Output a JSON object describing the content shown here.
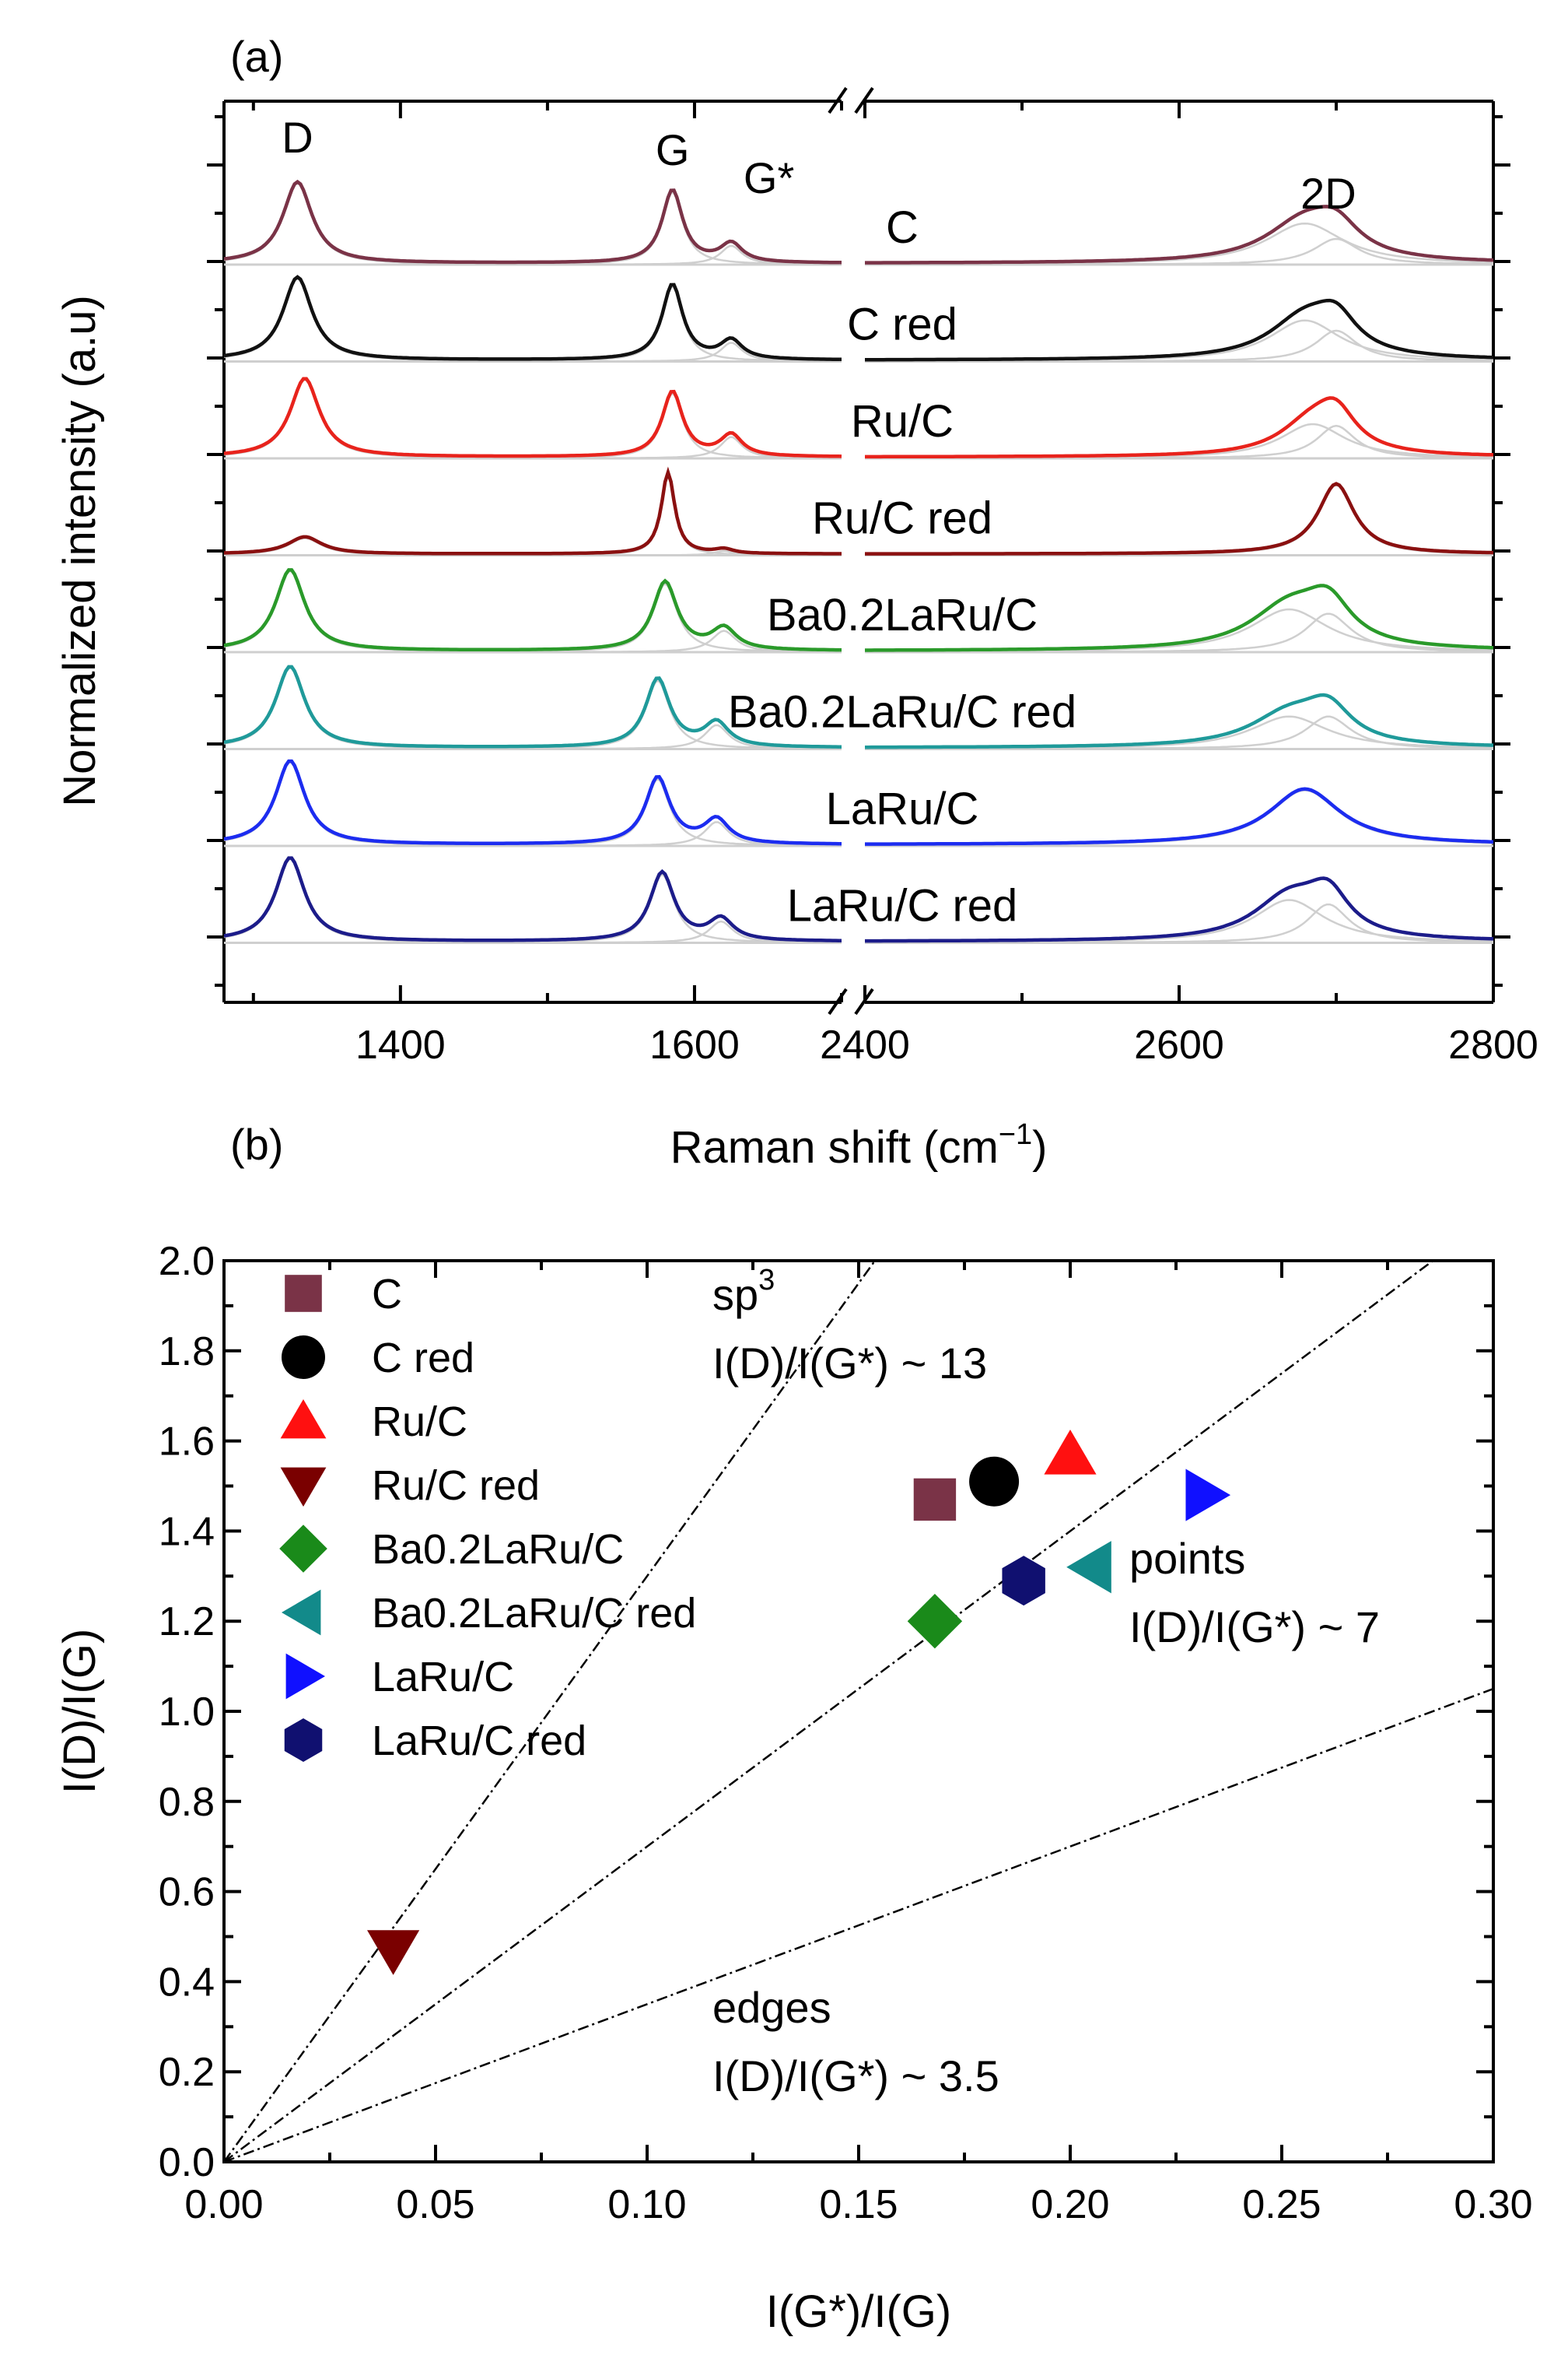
{
  "chart_data": [
    {
      "panel": "(a)",
      "type": "line",
      "xlabel": "Raman shift (cm",
      "xlabel_sup": "−1",
      "xlabel_tail": ")",
      "ylabel": "Normalized intensity (a.u)",
      "x_break": [
        1700,
        2400
      ],
      "x_segments": [
        [
          1280,
          1700
        ],
        [
          2400,
          2800
        ]
      ],
      "xticks": [
        1400,
        1600,
        2400,
        2600,
        2800
      ],
      "band_labels": [
        {
          "text": "D",
          "x": 1330
        },
        {
          "text": "G",
          "x": 1585
        },
        {
          "text": "G*",
          "x": 1640
        },
        {
          "text": "2D",
          "x": 2695
        }
      ],
      "series": [
        {
          "name": "C",
          "color": "#7a3347",
          "D": {
            "x": 1330,
            "h": 0.95,
            "w": 24
          },
          "G": {
            "x": 1585,
            "h": 0.85,
            "w": 17
          },
          "Gs": {
            "x": 1625,
            "h": 0.22,
            "w": 18
          },
          "d2": [
            {
              "x": 2680,
              "h": 0.48,
              "w": 60
            },
            {
              "x": 2700,
              "h": 0.3,
              "w": 35
            }
          ]
        },
        {
          "name": "C red",
          "color": "#111111",
          "D": {
            "x": 1330,
            "h": 0.97,
            "w": 24
          },
          "G": {
            "x": 1585,
            "h": 0.88,
            "w": 17
          },
          "Gs": {
            "x": 1625,
            "h": 0.22,
            "w": 18
          },
          "d2": [
            {
              "x": 2680,
              "h": 0.48,
              "w": 55
            },
            {
              "x": 2700,
              "h": 0.36,
              "w": 32
            }
          ]
        },
        {
          "name": "Ru/C",
          "color": "#e8231c",
          "D": {
            "x": 1335,
            "h": 0.92,
            "w": 24
          },
          "G": {
            "x": 1585,
            "h": 0.76,
            "w": 17
          },
          "Gs": {
            "x": 1625,
            "h": 0.25,
            "w": 18
          },
          "d2": [
            {
              "x": 2685,
              "h": 0.4,
              "w": 50
            },
            {
              "x": 2700,
              "h": 0.38,
              "w": 30
            }
          ]
        },
        {
          "name": "Ru/C red",
          "color": "#8a1010",
          "D": {
            "x": 1335,
            "h": 0.2,
            "w": 28
          },
          "G": {
            "x": 1582,
            "h": 0.95,
            "w": 11
          },
          "Gs": {
            "x": 1620,
            "h": 0.05,
            "w": 15
          },
          "d2": [
            {
              "x": 2700,
              "h": 0.82,
              "w": 28
            }
          ]
        },
        {
          "name": "Ba0.2LaRu/C",
          "color": "#2a9a2a",
          "D": {
            "x": 1325,
            "h": 0.95,
            "w": 24
          },
          "G": {
            "x": 1580,
            "h": 0.8,
            "w": 20
          },
          "Gs": {
            "x": 1620,
            "h": 0.25,
            "w": 20
          },
          "d2": [
            {
              "x": 2670,
              "h": 0.5,
              "w": 60
            },
            {
              "x": 2695,
              "h": 0.45,
              "w": 35
            }
          ]
        },
        {
          "name": "Ba0.2LaRu/C red",
          "color": "#1f9a9a",
          "D": {
            "x": 1325,
            "h": 0.95,
            "w": 24
          },
          "G": {
            "x": 1575,
            "h": 0.8,
            "w": 20
          },
          "Gs": {
            "x": 1615,
            "h": 0.28,
            "w": 20
          },
          "d2": [
            {
              "x": 2670,
              "h": 0.38,
              "w": 60
            },
            {
              "x": 2695,
              "h": 0.38,
              "w": 35
            }
          ]
        },
        {
          "name": "LaRu/C",
          "color": "#1c2cf0",
          "D": {
            "x": 1325,
            "h": 0.98,
            "w": 24
          },
          "G": {
            "x": 1575,
            "h": 0.78,
            "w": 20
          },
          "Gs": {
            "x": 1615,
            "h": 0.28,
            "w": 20
          },
          "d2": [
            {
              "x": 2680,
              "h": 0.65,
              "w": 55
            }
          ]
        },
        {
          "name": "LaRu/C red",
          "color": "#1c1c8a",
          "D": {
            "x": 1325,
            "h": 0.98,
            "w": 24
          },
          "G": {
            "x": 1578,
            "h": 0.8,
            "w": 20
          },
          "Gs": {
            "x": 1618,
            "h": 0.25,
            "w": 20
          },
          "d2": [
            {
              "x": 2670,
              "h": 0.5,
              "w": 55
            },
            {
              "x": 2695,
              "h": 0.45,
              "w": 32
            }
          ]
        }
      ]
    },
    {
      "panel": "(b)",
      "type": "scatter",
      "xlabel": "I(G*)/I(G)",
      "ylabel": "I(D)/I(G)",
      "xlim": [
        0.0,
        0.3
      ],
      "ylim": [
        0.0,
        2.0
      ],
      "xticks": [
        "0.00",
        "0.05",
        "0.10",
        "0.15",
        "0.20",
        "0.25",
        "0.30"
      ],
      "yticks": [
        "0.0",
        "0.2",
        "0.4",
        "0.6",
        "0.8",
        "1.0",
        "1.2",
        "1.4",
        "1.6",
        "1.8",
        "2.0"
      ],
      "points": [
        {
          "name": "C",
          "x": 0.168,
          "y": 1.47,
          "marker": "square",
          "color": "#7a3347"
        },
        {
          "name": "C red",
          "x": 0.182,
          "y": 1.51,
          "marker": "circle",
          "color": "#000000"
        },
        {
          "name": "Ru/C",
          "x": 0.2,
          "y": 1.57,
          "marker": "triangle-up",
          "color": "#ff1010"
        },
        {
          "name": "Ru/C red",
          "x": 0.04,
          "y": 0.47,
          "marker": "triangle-down",
          "color": "#7a0000"
        },
        {
          "name": "Ba0.2LaRu/C",
          "x": 0.168,
          "y": 1.2,
          "marker": "diamond",
          "color": "#1a8a1a"
        },
        {
          "name": "Ba0.2LaRu/C red",
          "x": 0.205,
          "y": 1.32,
          "marker": "triangle-left",
          "color": "#128a8a"
        },
        {
          "name": "LaRu/C",
          "x": 0.232,
          "y": 1.48,
          "marker": "triangle-right",
          "color": "#1010ff"
        },
        {
          "name": "LaRu/C red",
          "x": 0.189,
          "y": 1.29,
          "marker": "hexagon",
          "color": "#101070"
        }
      ],
      "reference_lines": [
        {
          "name": "sp3",
          "ratio": 13
        },
        {
          "name": "points",
          "ratio": 7
        },
        {
          "name": "edges",
          "ratio": 3.5
        }
      ],
      "annotations": [
        {
          "key": "sp3",
          "lines": [
            "sp",
            "I(D)/I(G*) ~ 13"
          ],
          "sup": "3"
        },
        {
          "key": "points",
          "lines": [
            "points",
            "I(D)/I(G*) ~ 7"
          ]
        },
        {
          "key": "edges",
          "lines": [
            "edges",
            "I(D)/I(G*) ~ 3.5"
          ]
        }
      ],
      "legend": "top-left"
    }
  ]
}
